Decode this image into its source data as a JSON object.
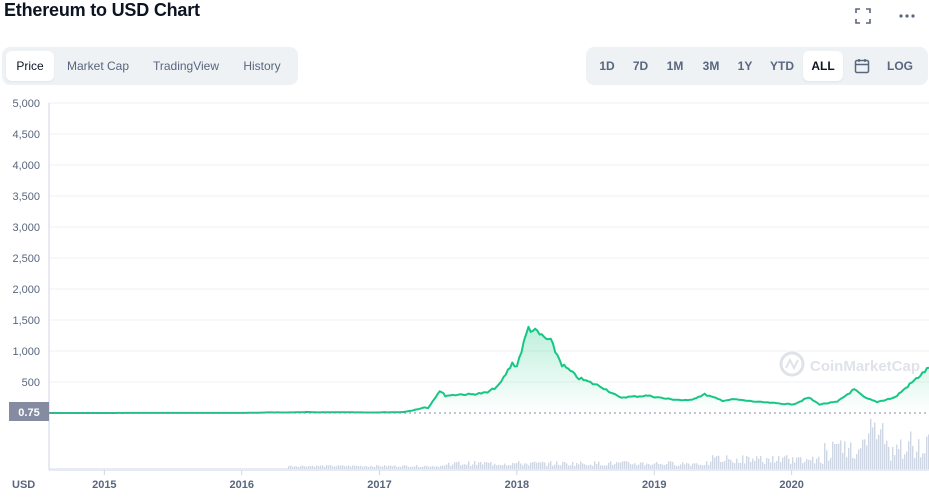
{
  "header": {
    "title": "Ethereum to USD Chart"
  },
  "icons": {
    "fullscreen": "fullscreen-icon",
    "more": "more-horizontal-icon",
    "calendar": "calendar-icon",
    "watermark": "coinmarketcap-logo-icon"
  },
  "chart_tabs": [
    {
      "label": "Price",
      "active": true
    },
    {
      "label": "Market Cap",
      "active": false
    },
    {
      "label": "TradingView",
      "active": false
    },
    {
      "label": "History",
      "active": false
    }
  ],
  "range_buttons": [
    {
      "label": "1D",
      "active": false
    },
    {
      "label": "7D",
      "active": false
    },
    {
      "label": "1M",
      "active": false
    },
    {
      "label": "3M",
      "active": false
    },
    {
      "label": "1Y",
      "active": false
    },
    {
      "label": "YTD",
      "active": false
    },
    {
      "label": "ALL",
      "active": true
    }
  ],
  "log_label": "LOG",
  "watermark_text": "CoinMarketCap",
  "currency_label": "USD",
  "start_price_label": "0.75",
  "colors": {
    "line": "#16c784",
    "area_top": "#16c784",
    "volume": "#cfd6e4",
    "grid": "#eff2f5",
    "badge": "#858ca2"
  },
  "chart_data": {
    "type": "line",
    "series": [
      {
        "x": [
          "2014-08-07",
          "2015-01-01",
          "2015-07-01",
          "2016-01-01",
          "2016-02-15",
          "2016-03-10",
          "2016-04-20",
          "2016-06-15",
          "2016-06-20",
          "2016-07-20",
          "2016-09-15",
          "2016-11-15",
          "2016-12-20",
          "2016-12-31",
          "2017-01-05",
          "2017-01-10",
          "2017-01-14",
          "2017-01-20",
          "2017-02-10",
          "2017-03-05",
          "2017-04-01",
          "2017-05-01",
          "2017-05-10",
          "2017-06-10",
          "2017-06-25",
          "2017-08-01",
          "2017-09-01",
          "2017-10-15",
          "2017-11-15",
          "2017-12-20",
          "2018-01-01",
          "2018-02-01",
          "2018-04-01",
          "2018-05-01",
          "2018-06-15",
          "2018-08-15",
          "2018-10-01",
          "2018-12-15",
          "2019-02-01",
          "2019-04-01",
          "2019-05-15",
          "2019-07-01",
          "2019-08-01",
          "2019-10-01",
          "2019-12-31",
          "2020-01-10",
          "2020-02-15",
          "2020-03-15",
          "2020-05-01",
          "2020-06-15",
          "2020-07-15",
          "2020-08-15",
          "2020-10-01",
          "2020-12-31"
        ],
        "y": [
          0.75,
          0.75,
          1,
          1,
          5,
          10,
          8,
          12,
          18,
          10,
          12,
          9,
          8,
          8,
          10,
          11,
          14,
          10,
          12,
          15,
          45,
          90,
          80,
          360,
          280,
          300,
          300,
          330,
          450,
          800,
          760,
          1380,
          1150,
          780,
          560,
          420,
          250,
          280,
          230,
          200,
          300,
          200,
          220,
          180,
          140,
          150,
          250,
          140,
          180,
          380,
          240,
          180,
          250,
          730
        ]
      }
    ],
    "xlabel": "",
    "ylabel": "",
    "x_ticks": [
      "2015",
      "2016",
      "2017",
      "2018",
      "2019",
      "2020"
    ],
    "y_ticks": [
      "500",
      "1,000",
      "1,500",
      "2,000",
      "2,500",
      "3,000",
      "3,500",
      "4,000",
      "4,500",
      "5,000"
    ],
    "ylim": [
      0,
      5000
    ],
    "grid": true
  }
}
